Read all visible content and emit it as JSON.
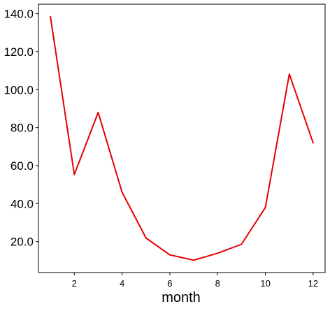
{
  "chart_data": {
    "type": "line",
    "title": "",
    "xlabel": "month",
    "ylabel": "",
    "x": [
      1,
      2,
      3,
      4,
      5,
      6,
      7,
      8,
      9,
      10,
      11,
      12
    ],
    "series": [
      {
        "values": [
          138.5,
          55.3,
          88.0,
          46.0,
          21.9,
          13.0,
          10.2,
          13.9,
          18.6,
          38.0,
          108.2,
          72.0
        ],
        "color": "#e60000"
      }
    ],
    "xlim": [
      0.5,
      12.5
    ],
    "ylim": [
      3.7,
      145.0
    ],
    "xticks": [
      2,
      4,
      6,
      8,
      10,
      12
    ],
    "xtick_labels": [
      "2",
      "4",
      "6",
      "8",
      "10",
      "12"
    ],
    "yticks": [
      20,
      40,
      60,
      80,
      100,
      120,
      140
    ],
    "ytick_labels": [
      "20.0",
      "40.0",
      "60.0",
      "80.0",
      "100.0",
      "120.0",
      "140.0"
    ],
    "grid": false,
    "legend": "none"
  }
}
